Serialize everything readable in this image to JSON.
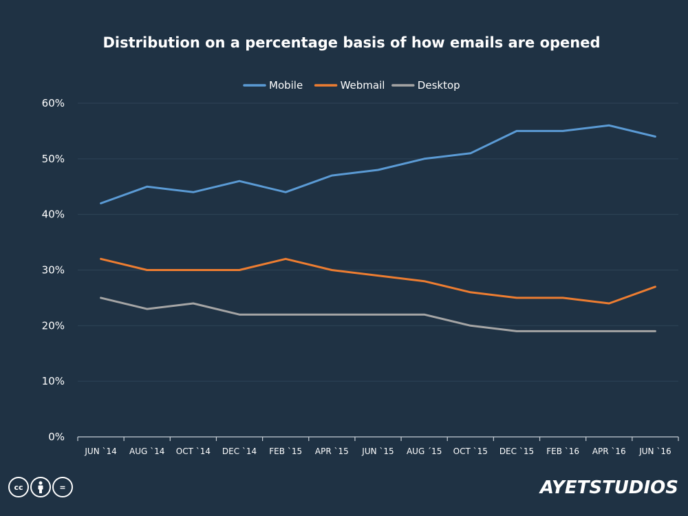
{
  "chart_data": {
    "type": "line",
    "title": "Distribution on a percentage basis of how emails are opened",
    "categories": [
      "JUN `14",
      "AUG `14",
      "OCT `14",
      "DEC `14",
      "FEB `15",
      "APR `15",
      "JUN `15",
      "AUG ´15",
      "OCT `15",
      "DEC `15",
      "FEB `16",
      "APR `16",
      "JUN `16"
    ],
    "series": [
      {
        "name": "Mobile",
        "color": "#5b9bd5",
        "values": [
          42,
          45,
          44,
          46,
          44,
          47,
          48,
          50,
          51,
          55,
          55,
          56,
          54
        ]
      },
      {
        "name": "Webmail",
        "color": "#ed7d31",
        "values": [
          32,
          30,
          30,
          30,
          32,
          30,
          29,
          28,
          26,
          25,
          25,
          24,
          27
        ]
      },
      {
        "name": "Desktop",
        "color": "#a5a5a5",
        "values": [
          25,
          23,
          24,
          22,
          22,
          22,
          22,
          22,
          20,
          19,
          19,
          19,
          19
        ]
      }
    ],
    "yticks": [
      "0%",
      "10%",
      "20%",
      "30%",
      "40%",
      "50%",
      "60%"
    ],
    "ylim": [
      0,
      60
    ],
    "xlabel": "",
    "ylabel": "",
    "legend_position": "top",
    "grid": true
  },
  "footer": {
    "license_icons": [
      "cc",
      "by",
      "="
    ],
    "brand": "AYETSTUDIOS"
  }
}
